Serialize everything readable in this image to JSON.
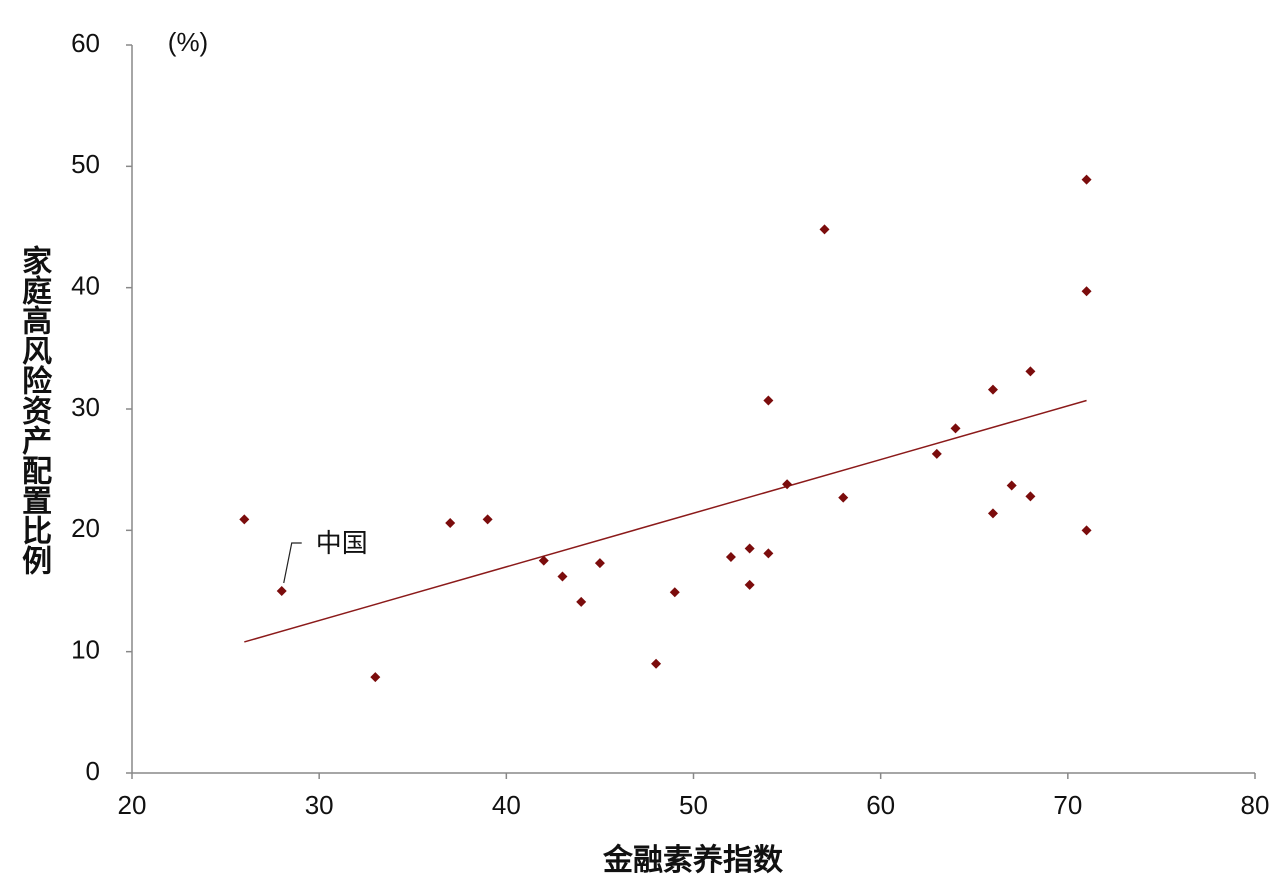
{
  "chart_data": {
    "type": "scatter",
    "y_label": "家庭高风险资产配置比例",
    "x_label": "金融素养指数",
    "unit_label": "(%)",
    "annotation": {
      "text": "中国",
      "x": 28,
      "y": 15.0
    },
    "xlim": [
      20,
      80
    ],
    "xticks": [
      20,
      30,
      40,
      50,
      60,
      70,
      80
    ],
    "ylim": [
      0,
      60
    ],
    "yticks": [
      0,
      10,
      20,
      30,
      40,
      50,
      60
    ],
    "color": "#7b0c0c",
    "x": [
      26,
      28,
      33,
      37,
      39,
      42,
      43,
      44,
      45,
      48,
      49,
      52,
      53,
      53,
      54,
      54,
      55,
      57,
      58,
      63,
      64,
      66,
      66,
      67,
      68,
      68,
      71,
      71,
      71
    ],
    "values": [
      20.9,
      15.0,
      7.9,
      20.6,
      20.9,
      17.5,
      16.2,
      14.1,
      17.3,
      9.0,
      14.9,
      17.8,
      18.5,
      15.5,
      18.1,
      30.7,
      23.8,
      44.8,
      22.7,
      26.3,
      28.4,
      31.6,
      21.4,
      23.7,
      33.1,
      22.8,
      48.9,
      39.7,
      20.0
    ],
    "trendline": {
      "x": [
        26,
        71
      ],
      "values": [
        10.8,
        30.7
      ],
      "color": "#8b1a1a"
    }
  }
}
